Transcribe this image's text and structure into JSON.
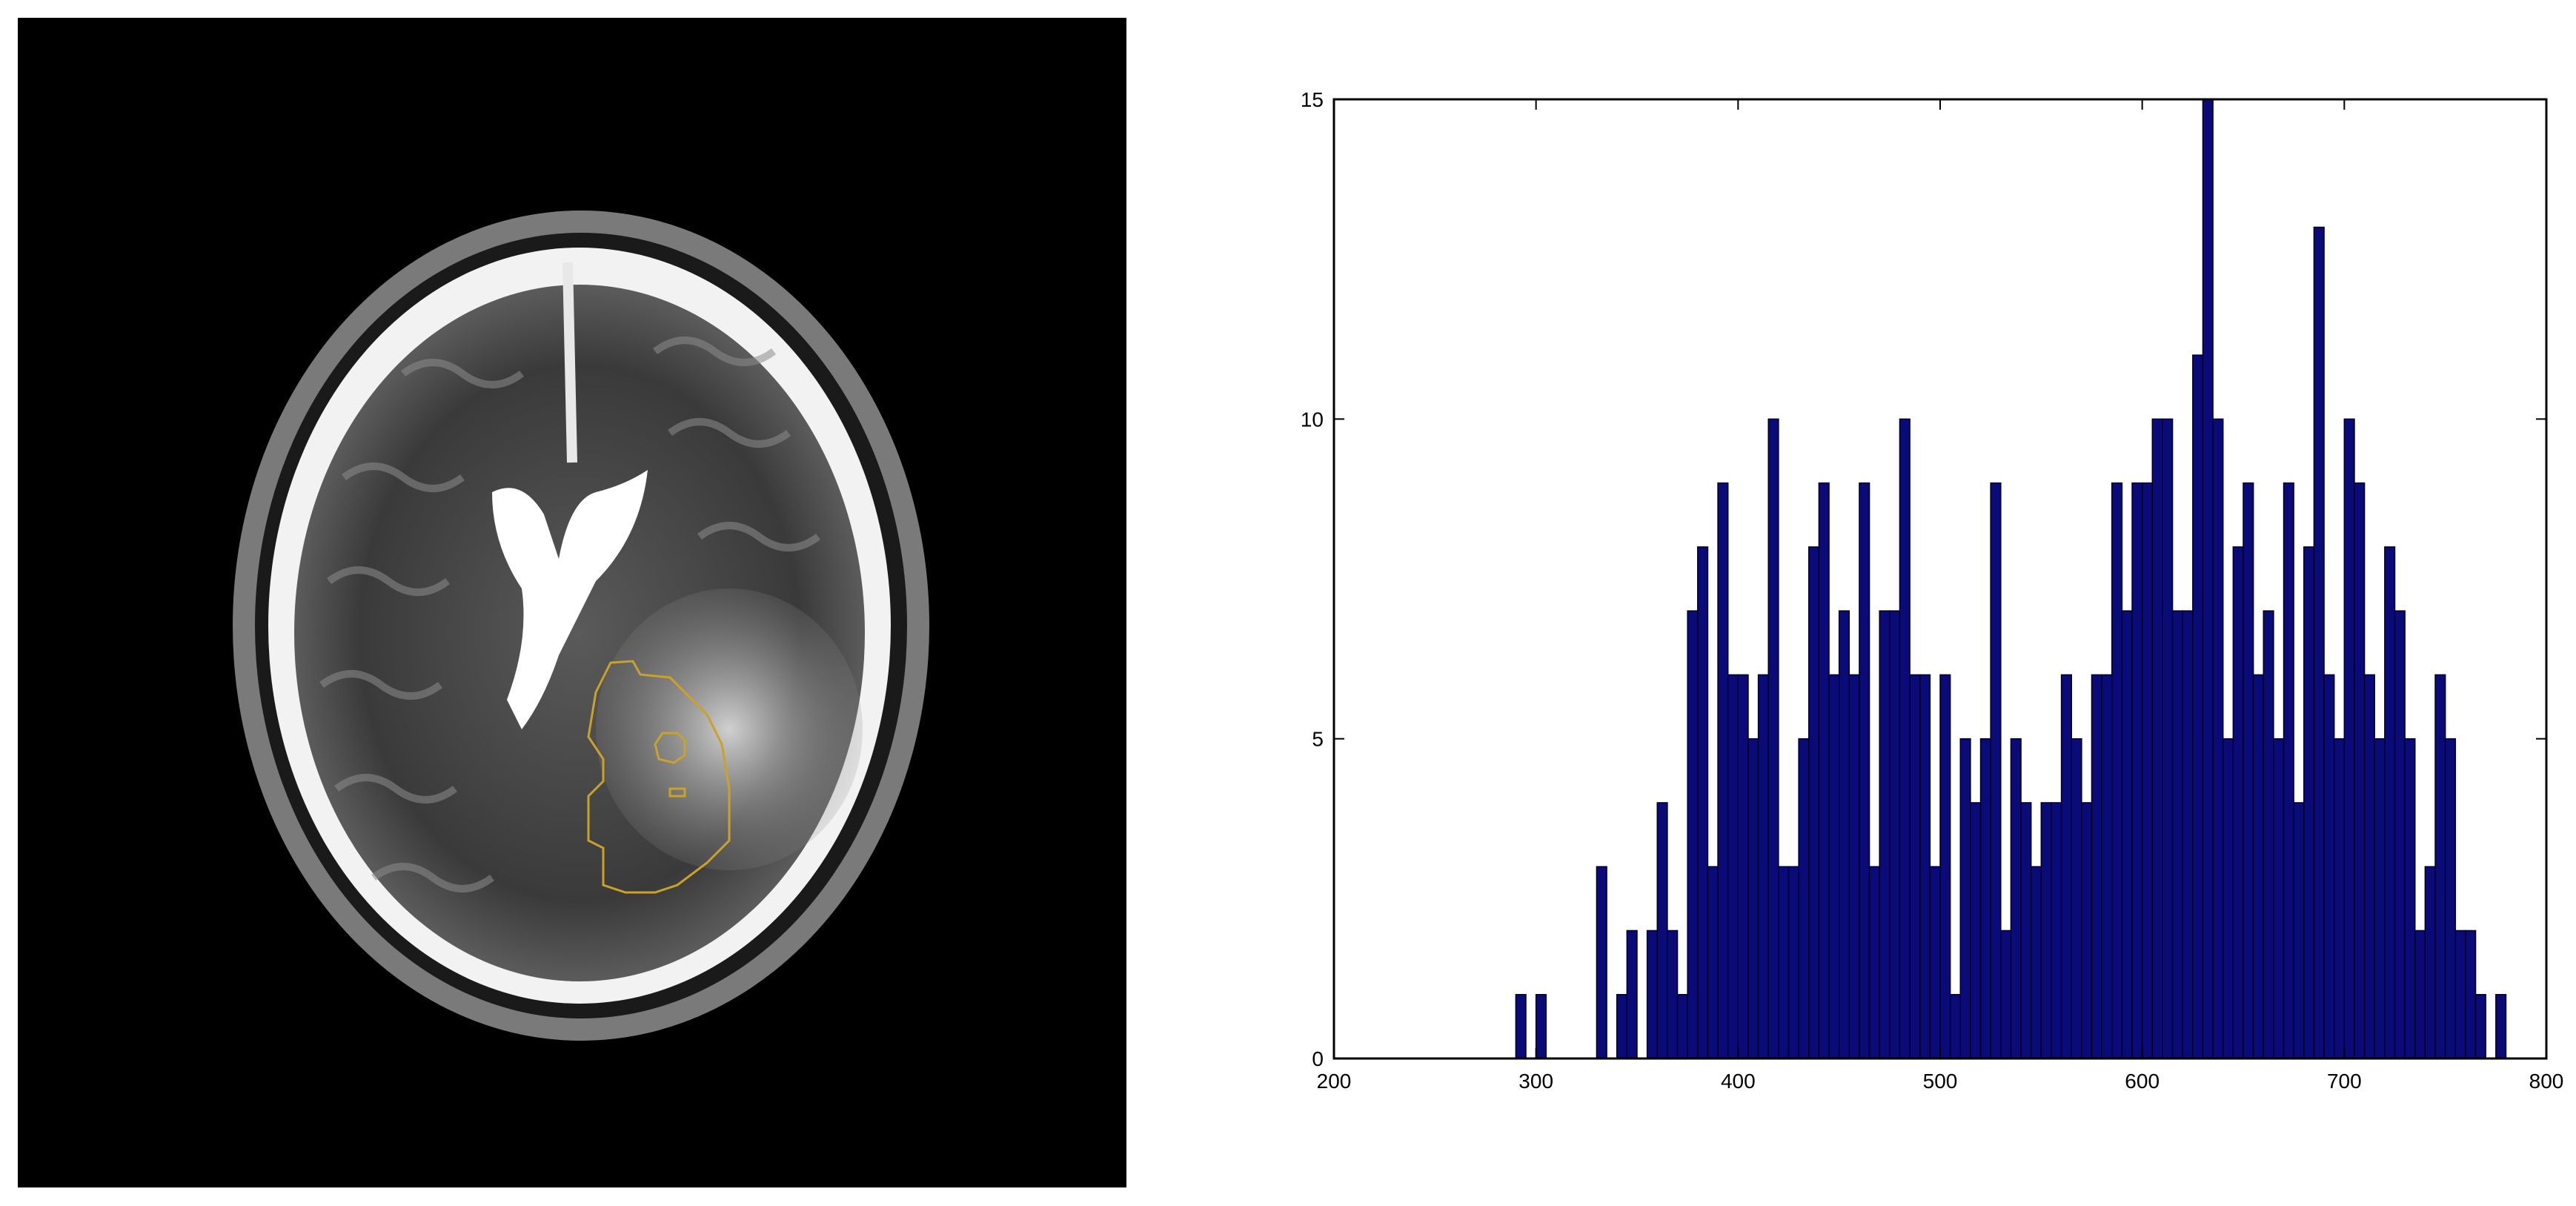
{
  "colors": {
    "bar_fill": "#0a0a78",
    "bar_edge": "#000022",
    "roi_contour": "#c9a227",
    "mri_background": "#000000"
  },
  "chart_data": {
    "type": "bar",
    "subtype": "histogram",
    "title": "",
    "xlabel": "",
    "ylabel": "",
    "xlim": [
      200,
      800
    ],
    "ylim": [
      0,
      15
    ],
    "xticks": [
      200,
      300,
      400,
      500,
      600,
      700,
      800
    ],
    "yticks": [
      0,
      5,
      10,
      15
    ],
    "bin_width": 5,
    "grid": false,
    "bins": [
      {
        "x": 290,
        "count": 1
      },
      {
        "x": 300,
        "count": 1
      },
      {
        "x": 330,
        "count": 3
      },
      {
        "x": 340,
        "count": 1
      },
      {
        "x": 345,
        "count": 2
      },
      {
        "x": 355,
        "count": 2
      },
      {
        "x": 360,
        "count": 4
      },
      {
        "x": 365,
        "count": 2
      },
      {
        "x": 370,
        "count": 1
      },
      {
        "x": 375,
        "count": 7
      },
      {
        "x": 380,
        "count": 8
      },
      {
        "x": 385,
        "count": 3
      },
      {
        "x": 390,
        "count": 9
      },
      {
        "x": 395,
        "count": 6
      },
      {
        "x": 400,
        "count": 6
      },
      {
        "x": 405,
        "count": 5
      },
      {
        "x": 410,
        "count": 6
      },
      {
        "x": 415,
        "count": 10
      },
      {
        "x": 420,
        "count": 3
      },
      {
        "x": 425,
        "count": 3
      },
      {
        "x": 430,
        "count": 5
      },
      {
        "x": 435,
        "count": 8
      },
      {
        "x": 440,
        "count": 9
      },
      {
        "x": 445,
        "count": 6
      },
      {
        "x": 450,
        "count": 7
      },
      {
        "x": 455,
        "count": 6
      },
      {
        "x": 460,
        "count": 9
      },
      {
        "x": 465,
        "count": 3
      },
      {
        "x": 470,
        "count": 7
      },
      {
        "x": 475,
        "count": 7
      },
      {
        "x": 480,
        "count": 10
      },
      {
        "x": 485,
        "count": 6
      },
      {
        "x": 490,
        "count": 6
      },
      {
        "x": 495,
        "count": 3
      },
      {
        "x": 500,
        "count": 6
      },
      {
        "x": 505,
        "count": 1
      },
      {
        "x": 510,
        "count": 5
      },
      {
        "x": 515,
        "count": 4
      },
      {
        "x": 520,
        "count": 5
      },
      {
        "x": 525,
        "count": 9
      },
      {
        "x": 530,
        "count": 2
      },
      {
        "x": 535,
        "count": 5
      },
      {
        "x": 540,
        "count": 4
      },
      {
        "x": 545,
        "count": 3
      },
      {
        "x": 550,
        "count": 4
      },
      {
        "x": 555,
        "count": 4
      },
      {
        "x": 560,
        "count": 6
      },
      {
        "x": 565,
        "count": 5
      },
      {
        "x": 570,
        "count": 4
      },
      {
        "x": 575,
        "count": 6
      },
      {
        "x": 580,
        "count": 6
      },
      {
        "x": 585,
        "count": 9
      },
      {
        "x": 590,
        "count": 7
      },
      {
        "x": 595,
        "count": 9
      },
      {
        "x": 600,
        "count": 9
      },
      {
        "x": 605,
        "count": 10
      },
      {
        "x": 610,
        "count": 10
      },
      {
        "x": 615,
        "count": 7
      },
      {
        "x": 620,
        "count": 7
      },
      {
        "x": 625,
        "count": 11
      },
      {
        "x": 630,
        "count": 15
      },
      {
        "x": 635,
        "count": 10
      },
      {
        "x": 640,
        "count": 5
      },
      {
        "x": 645,
        "count": 8
      },
      {
        "x": 650,
        "count": 9
      },
      {
        "x": 655,
        "count": 6
      },
      {
        "x": 660,
        "count": 7
      },
      {
        "x": 665,
        "count": 5
      },
      {
        "x": 670,
        "count": 9
      },
      {
        "x": 675,
        "count": 4
      },
      {
        "x": 680,
        "count": 8
      },
      {
        "x": 685,
        "count": 13
      },
      {
        "x": 690,
        "count": 6
      },
      {
        "x": 695,
        "count": 5
      },
      {
        "x": 700,
        "count": 10
      },
      {
        "x": 705,
        "count": 9
      },
      {
        "x": 710,
        "count": 6
      },
      {
        "x": 715,
        "count": 5
      },
      {
        "x": 720,
        "count": 8
      },
      {
        "x": 725,
        "count": 7
      },
      {
        "x": 730,
        "count": 5
      },
      {
        "x": 735,
        "count": 2
      },
      {
        "x": 740,
        "count": 3
      },
      {
        "x": 745,
        "count": 6
      },
      {
        "x": 750,
        "count": 5
      },
      {
        "x": 755,
        "count": 2
      },
      {
        "x": 760,
        "count": 2
      },
      {
        "x": 765,
        "count": 1
      },
      {
        "x": 775,
        "count": 1
      }
    ]
  }
}
